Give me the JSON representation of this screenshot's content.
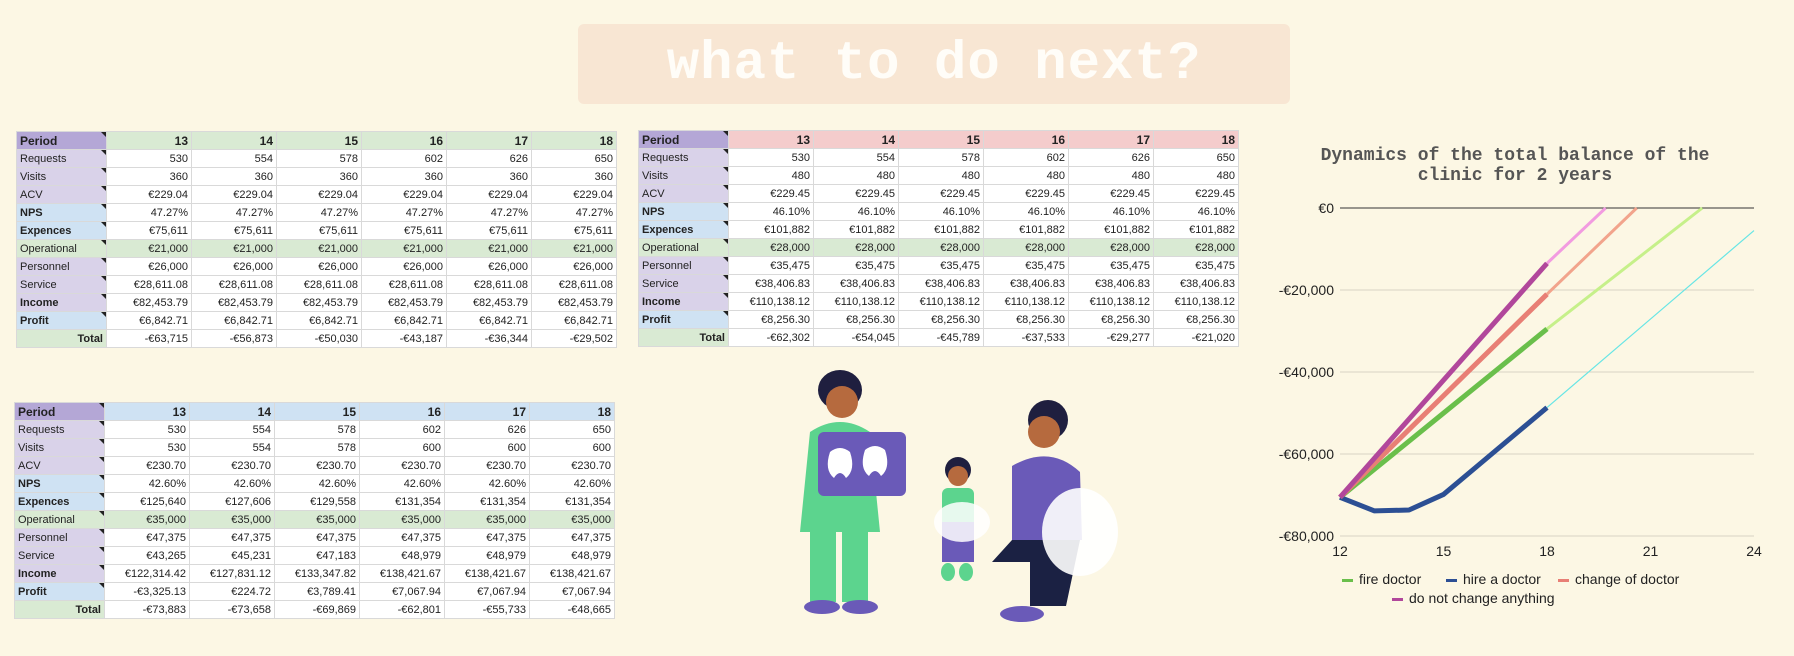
{
  "page_title": "what to do next?",
  "tables": [
    {
      "header_color": "#d9ead3",
      "columns": [
        "Period",
        "13",
        "14",
        "15",
        "16",
        "17",
        "18"
      ],
      "rows": [
        {
          "label": "Requests",
          "values": [
            "530",
            "554",
            "578",
            "602",
            "626",
            "650"
          ]
        },
        {
          "label": "Visits",
          "values": [
            "360",
            "360",
            "360",
            "360",
            "360",
            "360"
          ]
        },
        {
          "label": "ACV",
          "values": [
            "€229.04",
            "€229.04",
            "€229.04",
            "€229.04",
            "€229.04",
            "€229.04"
          ]
        },
        {
          "label": "NPS",
          "values": [
            "47.27%",
            "47.27%",
            "47.27%",
            "47.27%",
            "47.27%",
            "47.27%"
          ]
        },
        {
          "label": "Expences",
          "values": [
            "€75,611",
            "€75,611",
            "€75,611",
            "€75,611",
            "€75,611",
            "€75,611"
          ]
        },
        {
          "label": "Operational",
          "values": [
            "€21,000",
            "€21,000",
            "€21,000",
            "€21,000",
            "€21,000",
            "€21,000"
          ]
        },
        {
          "label": "Personnel",
          "values": [
            "€26,000",
            "€26,000",
            "€26,000",
            "€26,000",
            "€26,000",
            "€26,000"
          ]
        },
        {
          "label": "Service",
          "values": [
            "€28,611.08",
            "€28,611.08",
            "€28,611.08",
            "€28,611.08",
            "€28,611.08",
            "€28,611.08"
          ]
        },
        {
          "label": "Income",
          "values": [
            "€82,453.79",
            "€82,453.79",
            "€82,453.79",
            "€82,453.79",
            "€82,453.79",
            "€82,453.79"
          ]
        },
        {
          "label": "Profit",
          "values": [
            "€6,842.71",
            "€6,842.71",
            "€6,842.71",
            "€6,842.71",
            "€6,842.71",
            "€6,842.71"
          ]
        },
        {
          "label": "Total",
          "values": [
            "-€63,715",
            "-€56,873",
            "-€50,030",
            "-€43,187",
            "-€36,344",
            "-€29,502"
          ]
        }
      ]
    },
    {
      "header_color": "#f4cccc",
      "columns": [
        "Period",
        "13",
        "14",
        "15",
        "16",
        "17",
        "18"
      ],
      "rows": [
        {
          "label": "Requests",
          "values": [
            "530",
            "554",
            "578",
            "602",
            "626",
            "650"
          ]
        },
        {
          "label": "Visits",
          "values": [
            "480",
            "480",
            "480",
            "480",
            "480",
            "480"
          ]
        },
        {
          "label": "ACV",
          "values": [
            "€229.45",
            "€229.45",
            "€229.45",
            "€229.45",
            "€229.45",
            "€229.45"
          ]
        },
        {
          "label": "NPS",
          "values": [
            "46.10%",
            "46.10%",
            "46.10%",
            "46.10%",
            "46.10%",
            "46.10%"
          ]
        },
        {
          "label": "Expences",
          "values": [
            "€101,882",
            "€101,882",
            "€101,882",
            "€101,882",
            "€101,882",
            "€101,882"
          ]
        },
        {
          "label": "Operational",
          "values": [
            "€28,000",
            "€28,000",
            "€28,000",
            "€28,000",
            "€28,000",
            "€28,000"
          ]
        },
        {
          "label": "Personnel",
          "values": [
            "€35,475",
            "€35,475",
            "€35,475",
            "€35,475",
            "€35,475",
            "€35,475"
          ]
        },
        {
          "label": "Service",
          "values": [
            "€38,406.83",
            "€38,406.83",
            "€38,406.83",
            "€38,406.83",
            "€38,406.83",
            "€38,406.83"
          ]
        },
        {
          "label": "Income",
          "values": [
            "€110,138.12",
            "€110,138.12",
            "€110,138.12",
            "€110,138.12",
            "€110,138.12",
            "€110,138.12"
          ]
        },
        {
          "label": "Profit",
          "values": [
            "€8,256.30",
            "€8,256.30",
            "€8,256.30",
            "€8,256.30",
            "€8,256.30",
            "€8,256.30"
          ]
        },
        {
          "label": "Total",
          "values": [
            "-€62,302",
            "-€54,045",
            "-€45,789",
            "-€37,533",
            "-€29,277",
            "-€21,020"
          ]
        }
      ]
    },
    {
      "header_color": "#cfe2f3",
      "columns": [
        "Period",
        "13",
        "14",
        "15",
        "16",
        "17",
        "18"
      ],
      "rows": [
        {
          "label": "Requests",
          "values": [
            "530",
            "554",
            "578",
            "602",
            "626",
            "650"
          ]
        },
        {
          "label": "Visits",
          "values": [
            "530",
            "554",
            "578",
            "600",
            "600",
            "600"
          ]
        },
        {
          "label": "ACV",
          "values": [
            "€230.70",
            "€230.70",
            "€230.70",
            "€230.70",
            "€230.70",
            "€230.70"
          ]
        },
        {
          "label": "NPS",
          "values": [
            "42.60%",
            "42.60%",
            "42.60%",
            "42.60%",
            "42.60%",
            "42.60%"
          ]
        },
        {
          "label": "Expences",
          "values": [
            "€125,640",
            "€127,606",
            "€129,558",
            "€131,354",
            "€131,354",
            "€131,354"
          ]
        },
        {
          "label": "Operational",
          "values": [
            "€35,000",
            "€35,000",
            "€35,000",
            "€35,000",
            "€35,000",
            "€35,000"
          ]
        },
        {
          "label": "Personnel",
          "values": [
            "€47,375",
            "€47,375",
            "€47,375",
            "€47,375",
            "€47,375",
            "€47,375"
          ]
        },
        {
          "label": "Service",
          "values": [
            "€43,265",
            "€45,231",
            "€47,183",
            "€48,979",
            "€48,979",
            "€48,979"
          ]
        },
        {
          "label": "Income",
          "values": [
            "€122,314.42",
            "€127,831.12",
            "€133,347.82",
            "€138,421.67",
            "€138,421.67",
            "€138,421.67"
          ]
        },
        {
          "label": "Profit",
          "values": [
            "-€3,325.13",
            "€224.72",
            "€3,789.41",
            "€7,067.94",
            "€7,067.94",
            "€7,067.94"
          ]
        },
        {
          "label": "Total",
          "values": [
            "-€73,883",
            "-€73,658",
            "-€69,869",
            "-€62,801",
            "-€55,733",
            "-€48,665"
          ]
        }
      ]
    }
  ],
  "row_colors": {
    "period": "#b4a7d6",
    "light_purple": "#d9d2e9",
    "blue": "#cfe2f3",
    "green": "#d9ead3"
  },
  "chart_data": {
    "type": "line",
    "title": "Dynamics of the total balance of the clinic for 2 years",
    "xlim": [
      12,
      24
    ],
    "ylim": [
      -80000,
      0
    ],
    "x_ticks": [
      "12",
      "15",
      "18",
      "21",
      "24"
    ],
    "y_ticks": [
      "€0",
      "-€20,000",
      "-€40,000",
      "-€60,000",
      "-€80,000"
    ],
    "legend_position": "bottom",
    "series": [
      {
        "name": "fire doctor",
        "color": "#6abf4b",
        "trend_color": "#c6f08a",
        "x": [
          12,
          13,
          14,
          15,
          16,
          17,
          18,
          22.5
        ],
        "y": [
          -70557,
          -63715,
          -56873,
          -50030,
          -43187,
          -36344,
          -29502,
          0
        ]
      },
      {
        "name": "hire a doctor",
        "color": "#2c4f94",
        "trend_color": "#66e5e5",
        "x": [
          12,
          13,
          14,
          15,
          16,
          17,
          18,
          24
        ],
        "y": [
          -70557,
          -73883,
          -73658,
          -69869,
          -62801,
          -55733,
          -48665,
          -5500
        ]
      },
      {
        "name": "change of doctor",
        "color": "#e87f75",
        "trend_color": "#f2a48c",
        "x": [
          12,
          13,
          14,
          15,
          16,
          17,
          18,
          20.6
        ],
        "y": [
          -70557,
          -62302,
          -54045,
          -45789,
          -37533,
          -29277,
          -21020,
          0
        ]
      },
      {
        "name": "do not change anything",
        "color": "#b1479b",
        "trend_color": "#f29be0",
        "x": [
          12,
          13,
          14,
          15,
          16,
          17,
          18,
          19.7
        ],
        "y": [
          -70557,
          -61000,
          -51500,
          -42000,
          -32500,
          -23000,
          -13500,
          0
        ]
      }
    ]
  }
}
